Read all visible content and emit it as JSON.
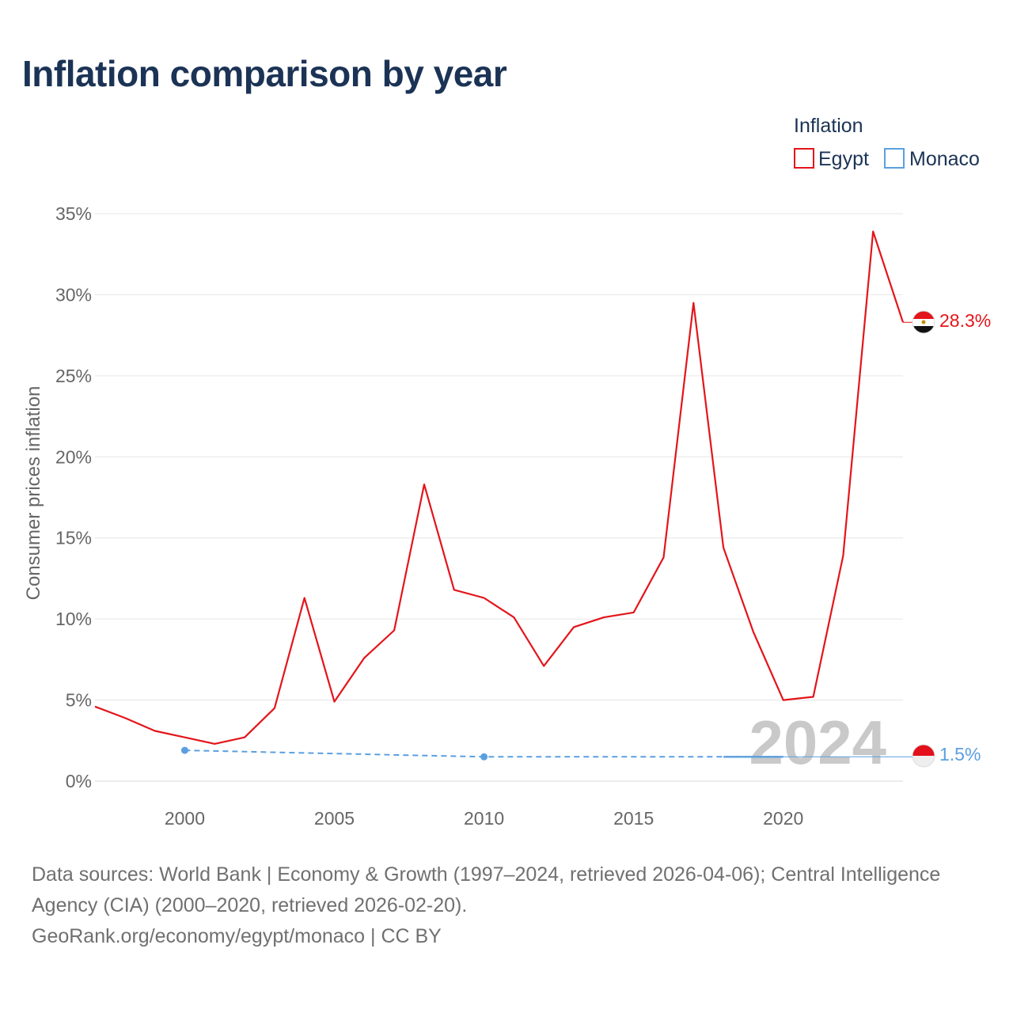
{
  "title": "Inflation comparison by year",
  "chart_data": {
    "type": "line",
    "title": "Inflation comparison by year",
    "xlabel": "",
    "ylabel": "Consumer prices inflation",
    "xlim": [
      1997,
      2024
    ],
    "ylim": [
      0,
      35
    ],
    "y_ticks": [
      0,
      5,
      10,
      15,
      20,
      25,
      30,
      35
    ],
    "y_tick_labels": [
      "0%",
      "5%",
      "10%",
      "15%",
      "20%",
      "25%",
      "30%",
      "35%"
    ],
    "x_ticks": [
      2000,
      2005,
      2010,
      2015,
      2020
    ],
    "x_tick_labels": [
      "2000",
      "2005",
      "2010",
      "2015",
      "2020"
    ],
    "legend": {
      "title": "Inflation",
      "position": "top-right",
      "entries": [
        "Egypt",
        "Monaco"
      ]
    },
    "year_watermark": "2024",
    "series": [
      {
        "name": "Egypt",
        "color": "#e3151b",
        "x": [
          1997,
          1998,
          1999,
          2000,
          2001,
          2002,
          2003,
          2004,
          2005,
          2006,
          2007,
          2008,
          2009,
          2010,
          2011,
          2012,
          2013,
          2014,
          2015,
          2016,
          2017,
          2018,
          2019,
          2020,
          2021,
          2022,
          2023,
          2024
        ],
        "values": [
          4.6,
          3.9,
          3.1,
          2.7,
          2.3,
          2.7,
          4.5,
          11.3,
          4.9,
          7.6,
          9.3,
          18.3,
          11.8,
          11.3,
          10.1,
          7.1,
          9.5,
          10.1,
          10.4,
          13.8,
          29.5,
          14.4,
          9.2,
          5.0,
          5.2,
          13.9,
          33.9,
          28.3
        ],
        "end_label": "28.3%"
      },
      {
        "name": "Monaco",
        "color": "#5b9fe0",
        "x": [
          2000,
          2010,
          2020,
          2024
        ],
        "values": [
          1.9,
          1.5,
          1.5,
          1.5
        ],
        "points": [
          2000,
          2010
        ],
        "end_label": "1.5%"
      }
    ]
  },
  "footer": {
    "sources": "Data sources: World Bank | Economy & Growth (1997–2024, retrieved 2026-04-06); Central Intelligence Agency (CIA) (2000–2020, retrieved 2026-02-20).",
    "credit": "GeoRank.org/economy/egypt/monaco | CC BY"
  }
}
